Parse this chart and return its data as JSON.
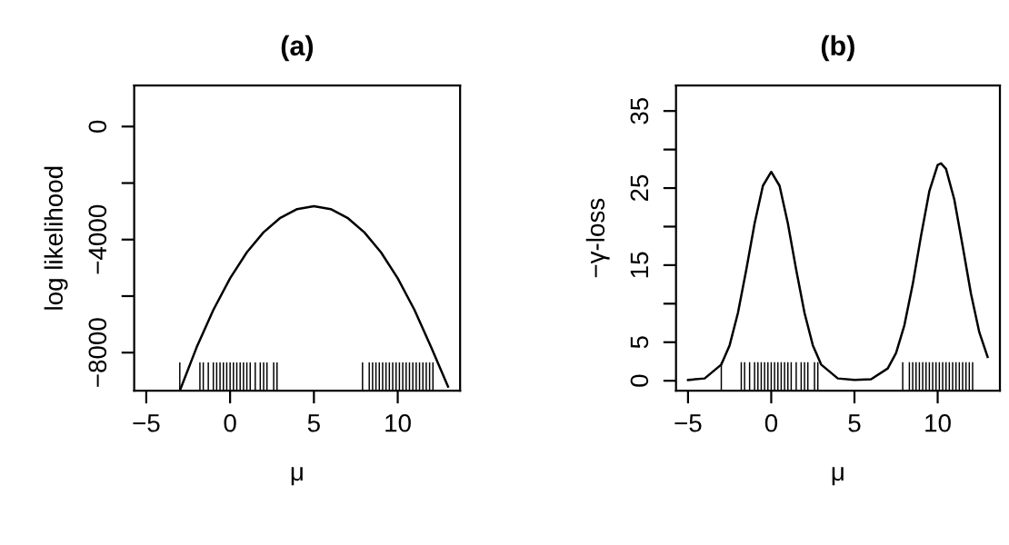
{
  "chart_data": [
    {
      "type": "line",
      "title": "(a)",
      "xlabel": "μ",
      "ylabel": "log likelihood",
      "xlim": [
        -5.72,
        13.72
      ],
      "ylim": [
        -9350,
        1450
      ],
      "xticks": [
        {
          "value": -5,
          "label": "−5"
        },
        0,
        5,
        10
      ],
      "yticks": [
        {
          "value": -8000,
          "label": "−8000"
        },
        {
          "value": -6000,
          "label": null
        },
        {
          "value": -4000,
          "label": "−4000"
        },
        {
          "value": -2000,
          "label": null
        },
        0
      ],
      "grid": false,
      "series": [
        {
          "color": "#000000",
          "x": [
            -3,
            -2,
            -1,
            0,
            1,
            2,
            3,
            4,
            5,
            6,
            7,
            8,
            9,
            10,
            11,
            12,
            13
          ],
          "values": [
            -9350,
            -7820,
            -6490,
            -5370,
            -4450,
            -3740,
            -3230,
            -2920,
            -2820,
            -2920,
            -3230,
            -3740,
            -4450,
            -5370,
            -6490,
            -7820,
            -9200
          ]
        },
        {
          "type": "bar",
          "color": "#000000",
          "x": [
            -3.0,
            -1.8,
            -1.6,
            -1.3,
            -1.0,
            -0.8,
            -0.6,
            -0.4,
            -0.2,
            0.0,
            0.2,
            0.4,
            0.6,
            0.8,
            1.0,
            1.2,
            1.5,
            1.8,
            2.0,
            2.2,
            2.6,
            2.8,
            7.9,
            8.3,
            8.5,
            8.7,
            8.9,
            9.1,
            9.3,
            9.5,
            9.7,
            9.9,
            10.1,
            10.3,
            10.5,
            10.7,
            10.9,
            11.1,
            11.3,
            11.5,
            11.7,
            11.9,
            12.1
          ],
          "base": [
            -9350,
            -9350,
            -9350,
            -9350,
            -9350,
            -9350,
            -9350,
            -9350,
            -9350,
            -9350,
            -9350,
            -9350,
            -9350,
            -9350,
            -9350,
            -9350,
            -9350,
            -9350,
            -9350,
            -9350,
            -9350,
            -9350,
            -9350,
            -9350,
            -9350,
            -9350,
            -9350,
            -9350,
            -9350,
            -9350,
            -9350,
            -9350,
            -9350,
            -9350,
            -9350,
            -9350,
            -9350,
            -9350,
            -9350,
            -9350,
            -9350,
            -9350,
            -9350
          ],
          "values": [
            1000,
            1000,
            1000,
            1000,
            1000,
            1000,
            1000,
            1000,
            1000,
            1000,
            1000,
            1000,
            1000,
            1000,
            1000,
            1000,
            1000,
            1000,
            1000,
            1000,
            1000,
            1000,
            1000,
            1000,
            1000,
            1000,
            1000,
            1000,
            1000,
            1000,
            1000,
            1000,
            1000,
            1000,
            1000,
            1000,
            1000,
            1000,
            1000,
            1000,
            1000,
            1000,
            1000
          ]
        }
      ]
    },
    {
      "type": "line",
      "title": "(b)",
      "xlabel": "μ",
      "ylabel": "−γ-loss",
      "xlim": [
        -5.72,
        13.74
      ],
      "ylim": [
        -1.3,
        38.3
      ],
      "xticks": [
        {
          "value": -5,
          "label": "−5"
        },
        0,
        5,
        10
      ],
      "yticks": [
        0,
        5,
        {
          "value": 10,
          "label": null
        },
        15,
        {
          "value": 20,
          "label": null
        },
        25,
        {
          "value": 30,
          "label": null
        },
        35
      ],
      "grid": false,
      "series": [
        {
          "color": "#000000",
          "x": [
            -5,
            -4,
            -3,
            -2.5,
            -2,
            -1.5,
            -1,
            -0.5,
            0,
            0.5,
            1,
            1.5,
            2,
            2.5,
            3,
            4,
            5,
            6,
            7,
            7.5,
            8,
            8.5,
            9,
            9.5,
            10,
            10.2,
            10.5,
            11,
            11.5,
            12,
            12.5,
            13
          ],
          "values": [
            0.1,
            0.3,
            2.1,
            4.6,
            8.8,
            14.4,
            20.4,
            25.3,
            27.1,
            25.3,
            20.4,
            14.4,
            8.8,
            4.6,
            2.1,
            0.3,
            0.1,
            0.2,
            1.6,
            3.6,
            7.2,
            12.5,
            18.8,
            24.6,
            28.0,
            28.2,
            27.5,
            23.5,
            17.5,
            11.3,
            6.3,
            3.1
          ]
        },
        {
          "type": "bar",
          "color": "#000000",
          "x": [
            -3.0,
            -1.8,
            -1.6,
            -1.3,
            -1.0,
            -0.8,
            -0.6,
            -0.4,
            -0.2,
            0.0,
            0.2,
            0.4,
            0.6,
            0.8,
            1.0,
            1.2,
            1.5,
            1.8,
            2.0,
            2.2,
            2.6,
            2.8,
            7.9,
            8.3,
            8.5,
            8.7,
            8.9,
            9.1,
            9.3,
            9.5,
            9.7,
            9.9,
            10.1,
            10.3,
            10.5,
            10.7,
            10.9,
            11.1,
            11.3,
            11.5,
            11.7,
            11.9,
            12.1
          ],
          "base": [
            -1.3,
            -1.3,
            -1.3,
            -1.3,
            -1.3,
            -1.3,
            -1.3,
            -1.3,
            -1.3,
            -1.3,
            -1.3,
            -1.3,
            -1.3,
            -1.3,
            -1.3,
            -1.3,
            -1.3,
            -1.3,
            -1.3,
            -1.3,
            -1.3,
            -1.3,
            -1.3,
            -1.3,
            -1.3,
            -1.3,
            -1.3,
            -1.3,
            -1.3,
            -1.3,
            -1.3,
            -1.3,
            -1.3,
            -1.3,
            -1.3,
            -1.3,
            -1.3,
            -1.3,
            -1.3,
            -1.3,
            -1.3,
            -1.3,
            -1.3
          ],
          "values": [
            3.7,
            3.7,
            3.7,
            3.7,
            3.7,
            3.7,
            3.7,
            3.7,
            3.7,
            3.7,
            3.7,
            3.7,
            3.7,
            3.7,
            3.7,
            3.7,
            3.7,
            3.7,
            3.7,
            3.7,
            3.7,
            3.7,
            3.7,
            3.7,
            3.7,
            3.7,
            3.7,
            3.7,
            3.7,
            3.7,
            3.7,
            3.7,
            3.7,
            3.7,
            3.7,
            3.7,
            3.7,
            3.7,
            3.7,
            3.7,
            3.7,
            3.7,
            3.7
          ]
        }
      ]
    }
  ]
}
